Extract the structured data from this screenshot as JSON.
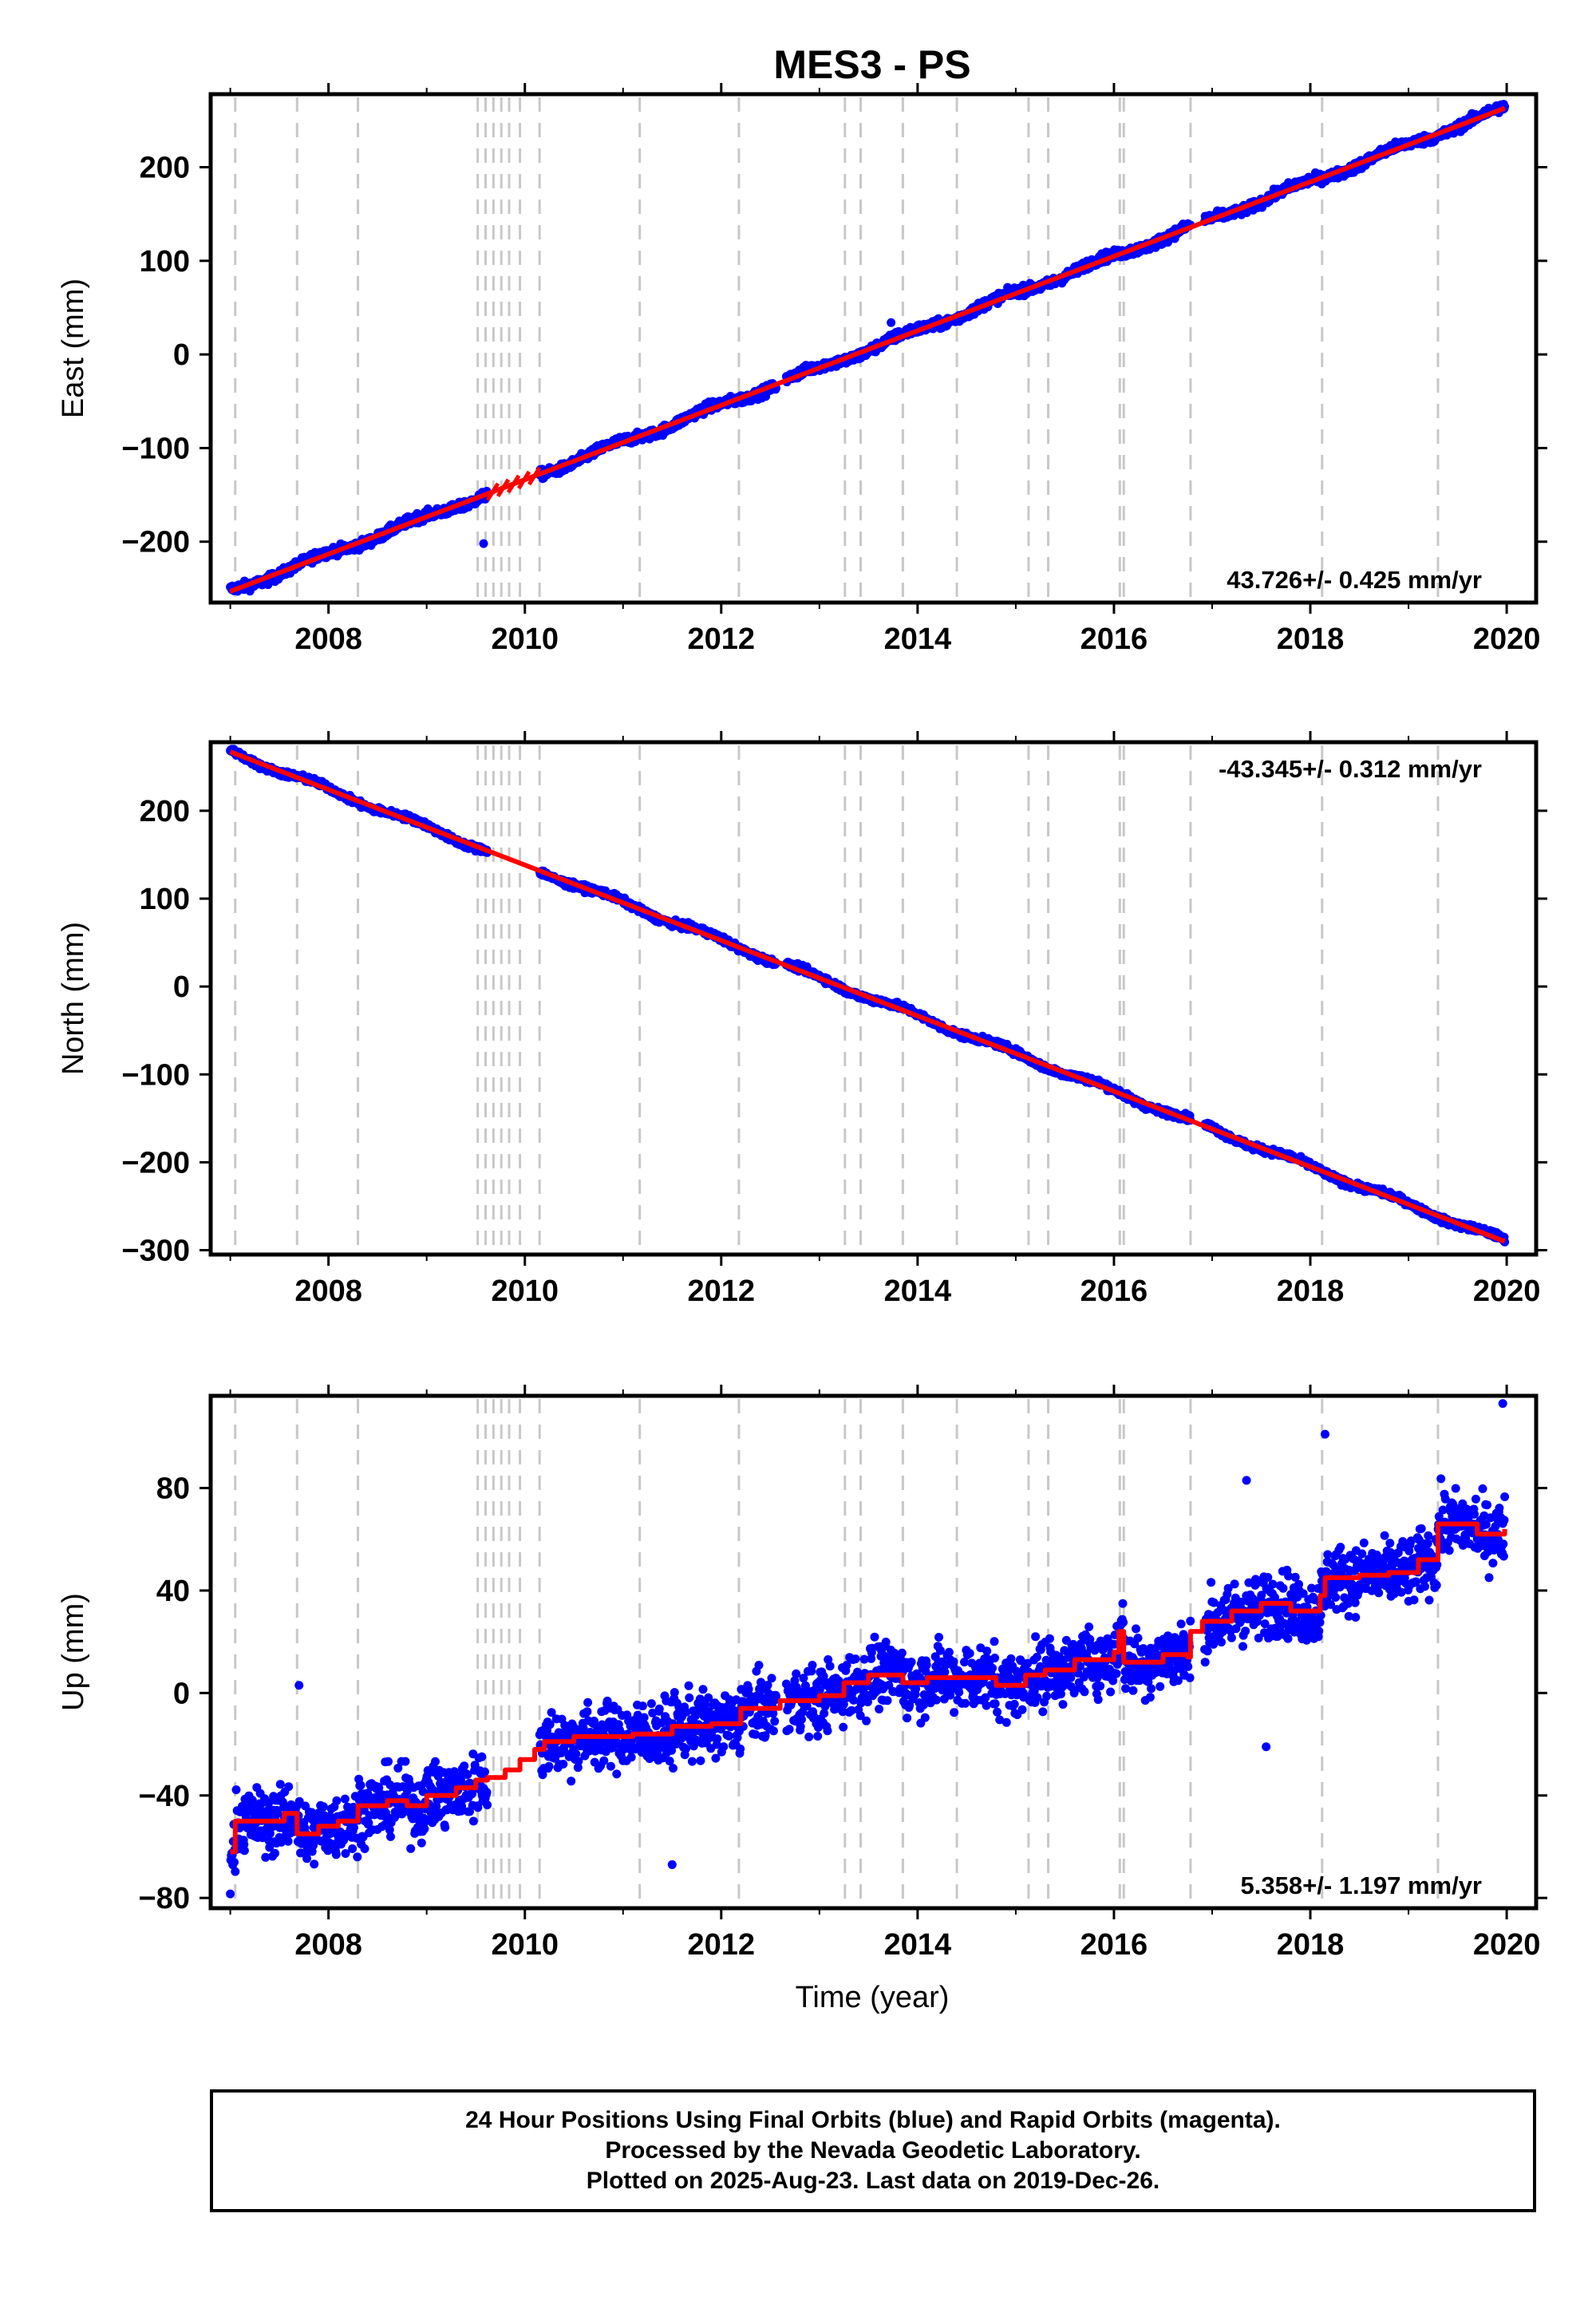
{
  "title": "MES3 - PS",
  "xlabel": "Time (year)",
  "footer": {
    "line1": "24 Hour Positions Using Final Orbits (blue) and Rapid Orbits (magenta).",
    "line2": "Processed by the Nevada Geodetic Laboratory.",
    "line3": "Plotted on 2025-Aug-23. Last data on 2019-Dec-26."
  },
  "colors": {
    "data": "#0000ff",
    "model": "#ff0000",
    "steps": "#c8c8c8",
    "frame": "#000000"
  },
  "chart_data": [
    {
      "type": "scatter",
      "ylabel": "East (mm)",
      "xlim": [
        2006.8,
        2020.3
      ],
      "ylim": [
        -265,
        278
      ],
      "xticks": [
        2008,
        2010,
        2012,
        2014,
        2016,
        2018,
        2020
      ],
      "yticks": [
        -200,
        -100,
        0,
        100,
        200
      ],
      "rate_label": "43.726+/- 0.425 mm/yr",
      "rate_position": "bottom-right",
      "data_range": [
        2007.0,
        2019.98
      ],
      "trend": {
        "start": -253,
        "end": 263
      },
      "gaps": [
        [
          2009.62,
          2010.15
        ],
        [
          2012.56,
          2012.66
        ],
        [
          2016.78,
          2016.92
        ]
      ],
      "noise": 3.5,
      "outliers": [
        {
          "x": 2009.58,
          "y": -202
        },
        {
          "x": 2013.73,
          "y": 34
        }
      ],
      "model_sawtooth": [
        2009.62,
        2010.15
      ]
    },
    {
      "type": "scatter",
      "ylabel": "North (mm)",
      "xlim": [
        2006.8,
        2020.3
      ],
      "ylim": [
        -305,
        278
      ],
      "xticks": [
        2008,
        2010,
        2012,
        2014,
        2016,
        2018,
        2020
      ],
      "yticks": [
        -300,
        -200,
        -100,
        0,
        100,
        200
      ],
      "rate_label": "-43.345+/- 0.312 mm/yr",
      "rate_position": "top-right",
      "data_range": [
        2007.0,
        2019.98
      ],
      "trend": {
        "start": 267,
        "end": -290
      },
      "gaps": [
        [
          2009.62,
          2010.15
        ],
        [
          2012.56,
          2012.66
        ],
        [
          2016.78,
          2016.92
        ]
      ],
      "noise": 2.5,
      "outliers": [],
      "model_sawtooth": null
    },
    {
      "type": "scatter",
      "ylabel": "Up (mm)",
      "xlim": [
        2006.8,
        2020.3
      ],
      "ylim": [
        -84,
        116
      ],
      "xticks": [
        2008,
        2010,
        2012,
        2014,
        2016,
        2018,
        2020
      ],
      "yticks": [
        -80,
        -40,
        0,
        40,
        80
      ],
      "rate_label": "5.358+/- 1.197 mm/yr",
      "rate_position": "bottom-right",
      "data_range": [
        2007.0,
        2019.98
      ],
      "gaps": [
        [
          2009.62,
          2010.15
        ],
        [
          2012.56,
          2012.66
        ],
        [
          2016.78,
          2016.92
        ]
      ],
      "noise": 9,
      "outliers": [
        {
          "x": 2019.96,
          "y": 113
        },
        {
          "x": 2018.15,
          "y": 101
        },
        {
          "x": 2017.35,
          "y": 83
        },
        {
          "x": 2011.5,
          "y": -67
        },
        {
          "x": 2007.7,
          "y": 3
        },
        {
          "x": 2017.55,
          "y": -21
        }
      ],
      "model_steps": [
        [
          2007.0,
          -62
        ],
        [
          2007.05,
          -50
        ],
        [
          2007.55,
          -47
        ],
        [
          2007.68,
          -55
        ],
        [
          2007.9,
          -52
        ],
        [
          2008.1,
          -50
        ],
        [
          2008.3,
          -44
        ],
        [
          2008.6,
          -42
        ],
        [
          2008.8,
          -44
        ],
        [
          2009.0,
          -40
        ],
        [
          2009.3,
          -37
        ],
        [
          2009.5,
          -34
        ],
        [
          2009.62,
          -33
        ],
        [
          2009.8,
          -30
        ],
        [
          2009.95,
          -26
        ],
        [
          2010.1,
          -22
        ],
        [
          2010.2,
          -19
        ],
        [
          2010.5,
          -17
        ],
        [
          2010.8,
          -17
        ],
        [
          2011.1,
          -16
        ],
        [
          2011.5,
          -13
        ],
        [
          2011.9,
          -12
        ],
        [
          2012.2,
          -6
        ],
        [
          2012.6,
          -3
        ],
        [
          2013.0,
          -1
        ],
        [
          2013.25,
          4
        ],
        [
          2013.5,
          7
        ],
        [
          2013.85,
          4
        ],
        [
          2014.1,
          6
        ],
        [
          2014.4,
          6
        ],
        [
          2014.8,
          3
        ],
        [
          2015.1,
          7
        ],
        [
          2015.3,
          9
        ],
        [
          2015.6,
          13
        ],
        [
          2016.0,
          16
        ],
        [
          2016.05,
          24
        ],
        [
          2016.1,
          12
        ],
        [
          2016.5,
          15
        ],
        [
          2016.75,
          14
        ],
        [
          2016.78,
          24
        ],
        [
          2016.9,
          28
        ],
        [
          2017.2,
          32
        ],
        [
          2017.5,
          35
        ],
        [
          2017.8,
          32
        ],
        [
          2018.1,
          38
        ],
        [
          2018.15,
          45
        ],
        [
          2018.5,
          46
        ],
        [
          2018.8,
          47
        ],
        [
          2019.1,
          52
        ],
        [
          2019.3,
          66
        ],
        [
          2019.7,
          62
        ],
        [
          2019.98,
          64
        ]
      ]
    }
  ],
  "step_lines": [
    2007.05,
    2007.68,
    2008.3,
    2009.52,
    2009.6,
    2009.68,
    2009.76,
    2009.84,
    2009.95,
    2010.15,
    2011.17,
    2012.18,
    2013.26,
    2013.42,
    2013.85,
    2014.4,
    2015.13,
    2015.33,
    2016.06,
    2016.1,
    2016.78,
    2018.12,
    2019.3
  ]
}
